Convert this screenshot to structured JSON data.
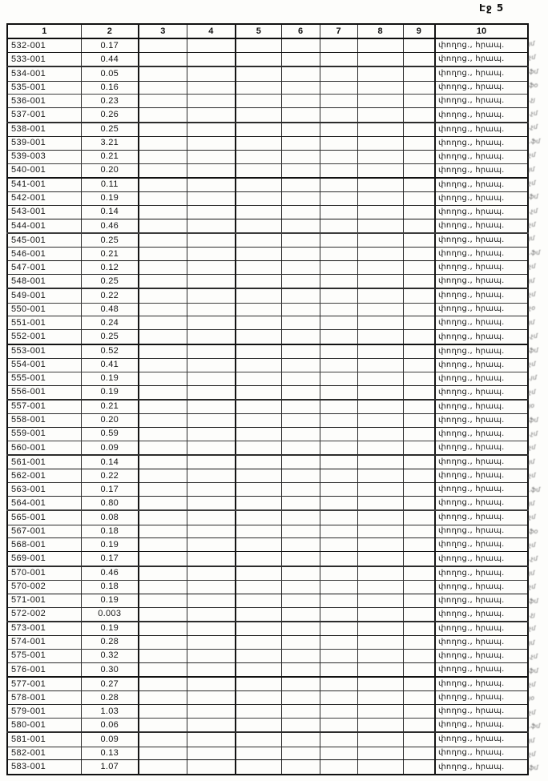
{
  "page": {
    "number_label": "Էջ 5"
  },
  "table": {
    "headers": [
      "1",
      "2",
      "3",
      "4",
      "5",
      "6",
      "7",
      "8",
      "9",
      "10"
    ],
    "rows": [
      {
        "id": "532-001",
        "value": "0.17",
        "note": "փողոց., հրապ."
      },
      {
        "id": "533-001",
        "value": "0.44",
        "note": "փողոց., հրապ."
      },
      {
        "id": "534-001",
        "value": "0.05",
        "note": "փողոց., հրապ."
      },
      {
        "id": "535-001",
        "value": "0.16",
        "note": "փողոց., հրապ."
      },
      {
        "id": "536-001",
        "value": "0.23",
        "note": "փողոց., հրապ."
      },
      {
        "id": "537-001",
        "value": "0.26",
        "note": "փողոց., հրապ."
      },
      {
        "id": "538-001",
        "value": "0.25",
        "note": "փողոց., հրապ."
      },
      {
        "id": "539-001",
        "value": "3.21",
        "note": "փողոց., հրապ."
      },
      {
        "id": "539-003",
        "value": "0.21",
        "note": "փողոց., հրապ."
      },
      {
        "id": "540-001",
        "value": "0.20",
        "note": "փողոց., հրապ."
      },
      {
        "id": "541-001",
        "value": "0.11",
        "note": "փողոց., հրապ."
      },
      {
        "id": "542-001",
        "value": "0.19",
        "note": "փողոց., հրապ."
      },
      {
        "id": "543-001",
        "value": "0.14",
        "note": "փողոց., հրապ."
      },
      {
        "id": "544-001",
        "value": "0.46",
        "note": "փողոց., հրապ."
      },
      {
        "id": "545-001",
        "value": "0.25",
        "note": "փողոց., հրապ."
      },
      {
        "id": "546-001",
        "value": "0.21",
        "note": "փողոց., հրապ."
      },
      {
        "id": "547-001",
        "value": "0.12",
        "note": "փողոց., հրապ."
      },
      {
        "id": "548-001",
        "value": "0.25",
        "note": "փողոց., հրապ."
      },
      {
        "id": "549-001",
        "value": "0.22",
        "note": "փողոց., հրապ."
      },
      {
        "id": "550-001",
        "value": "0.48",
        "note": "փողոց., հրապ."
      },
      {
        "id": "551-001",
        "value": "0.24",
        "note": "փողոց., հրապ."
      },
      {
        "id": "552-001",
        "value": "0.25",
        "note": "փողոց., հրապ."
      },
      {
        "id": "553-001",
        "value": "0.52",
        "note": "փողոց., հրապ."
      },
      {
        "id": "554-001",
        "value": "0.41",
        "note": "փողոց., հրապ."
      },
      {
        "id": "555-001",
        "value": "0.19",
        "note": "փողոց., հրապ."
      },
      {
        "id": "556-001",
        "value": "0.19",
        "note": "փողոց., հրապ."
      },
      {
        "id": "557-001",
        "value": "0.21",
        "note": "փողոց., հրապ."
      },
      {
        "id": "558-001",
        "value": "0.20",
        "note": "փողոց., հրապ."
      },
      {
        "id": "559-001",
        "value": "0.59",
        "note": "փողոց., հրապ."
      },
      {
        "id": "560-001",
        "value": "0.09",
        "note": "փողոց., հրապ."
      },
      {
        "id": "561-001",
        "value": "0.14",
        "note": "փողոց., հրապ."
      },
      {
        "id": "562-001",
        "value": "0.22",
        "note": "փողոց., հրապ."
      },
      {
        "id": "563-001",
        "value": "0.17",
        "note": "փողոց., հրապ."
      },
      {
        "id": "564-001",
        "value": "0.80",
        "note": "փողոց., հրապ."
      },
      {
        "id": "565-001",
        "value": "0.08",
        "note": "փողոց., հրապ."
      },
      {
        "id": "567-001",
        "value": "0.18",
        "note": "փողոց., հրապ."
      },
      {
        "id": "568-001",
        "value": "0.19",
        "note": "փողոց., հրապ."
      },
      {
        "id": "569-001",
        "value": "0.17",
        "note": "փողոց., հրապ."
      },
      {
        "id": "570-001",
        "value": "0.46",
        "note": "փողոց., հրապ."
      },
      {
        "id": "570-002",
        "value": "0.18",
        "note": "փողոց., հրապ."
      },
      {
        "id": "571-001",
        "value": "0.19",
        "note": "փողոց., հրապ."
      },
      {
        "id": "572-002",
        "value": "0.003",
        "note": "փողոց., հրապ."
      },
      {
        "id": "573-001",
        "value": "0.19",
        "note": "փողոց., հրապ."
      },
      {
        "id": "574-001",
        "value": "0.28",
        "note": "փողոց., հրապ."
      },
      {
        "id": "575-001",
        "value": "0.32",
        "note": "փողոց., հրապ."
      },
      {
        "id": "576-001",
        "value": "0.30",
        "note": "փողոց., հրապ."
      },
      {
        "id": "577-001",
        "value": "0.27",
        "note": "փողոց., հրապ."
      },
      {
        "id": "578-001",
        "value": "0.28",
        "note": "փողոց., հրապ."
      },
      {
        "id": "579-001",
        "value": "1.03",
        "note": "փողոց., հրապ."
      },
      {
        "id": "580-001",
        "value": "0.06",
        "note": "փողոց., հրապ."
      },
      {
        "id": "581-001",
        "value": "0.09",
        "note": "փողոց., հրապ."
      },
      {
        "id": "582-001",
        "value": "0.13",
        "note": "փողոց., հրապ."
      },
      {
        "id": "583-001",
        "value": "1.07",
        "note": "փողոց., հրապ."
      }
    ]
  },
  "margin_marks": [
    "յմ",
    "չմ",
    "ֆմ",
    "ֆօ",
    ".չյ",
    ".չմ",
    ".չմ",
    ".ֆմ",
    "չմ",
    "յմ",
    "չմ",
    "ֆմ",
    ".չմ",
    "չմ",
    "յմ",
    ".ֆմ",
    "չմ",
    "յմ",
    "չմ",
    "չօ",
    "յմ",
    ".չմ",
    "ֆմ",
    "չմ",
    ".յմ",
    "չմ",
    "յօ",
    "ֆմ",
    ".չմ",
    "չմ",
    "յմ",
    "չմ",
    ".ֆմ",
    "յմ",
    "չմ",
    "ֆօ",
    "չմ",
    ".չմ",
    "յմ",
    "չմ",
    "ֆմ",
    ".չյ",
    "չմ",
    "յմ",
    ".չմ",
    "ֆմ",
    "չմ",
    "յօ",
    "չմ",
    ".ֆմ",
    "յմ",
    "չմ",
    "ֆմ"
  ]
}
